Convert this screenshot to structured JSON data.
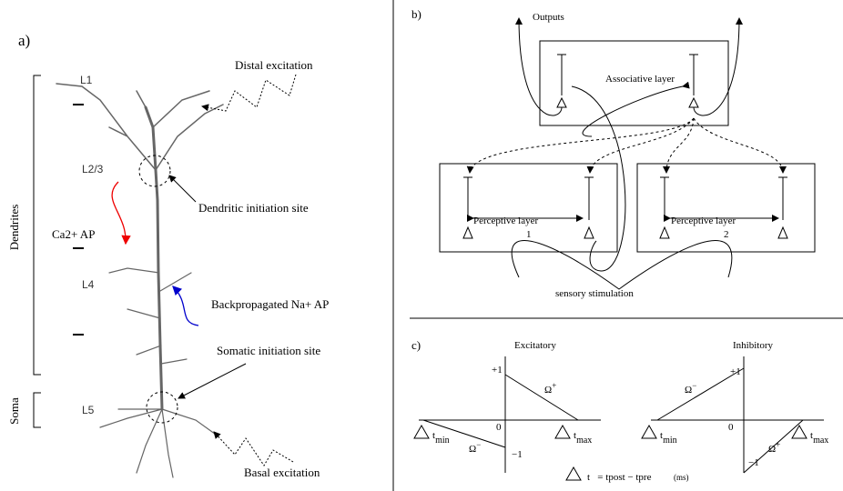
{
  "panel_a": {
    "label": "a)",
    "layers": [
      "L1",
      "L2/3",
      "L4",
      "L5"
    ],
    "dendrites": "Dendrites",
    "soma": "Soma",
    "distal": "Distal excitation",
    "dendritic_site": "Dendritic initiation site",
    "ca_ap": "Ca2+ AP",
    "na_ap": "Backpropagated Na+ AP",
    "somatic_site": "Somatic initiation site",
    "basal": "Basal excitation"
  },
  "panel_b": {
    "label": "b)",
    "outputs": "Outputs",
    "associative": "Associative layer",
    "perceptive_1": {
      "name": "Perceptive layer",
      "number": "1"
    },
    "perceptive_2": {
      "name": "Perceptive layer",
      "number": "2"
    },
    "sensory": "sensory stimulation"
  },
  "panel_c": {
    "label": "c)",
    "excitatory": {
      "title": "Excitatory",
      "plus_one": "+1",
      "minus_one": "−1",
      "zero": "0",
      "omega_plus": {
        "main": "Ω",
        "sup": "+"
      },
      "omega_minus": {
        "main": "Ω",
        "sup": "−"
      },
      "tmin": {
        "main": "t",
        "sub": "min"
      },
      "tmax": {
        "main": "t",
        "sub": "max"
      }
    },
    "inhibitory": {
      "title": "Inhibitory",
      "plus_one": "+1",
      "minus_one": "−1",
      "zero": "0",
      "omega_plus": {
        "main": "Ω",
        "sup": "+"
      },
      "omega_minus": {
        "main": "Ω",
        "sup": "−"
      },
      "tmin": {
        "main": "t",
        "sub": "min"
      },
      "tmax": {
        "main": "t",
        "sub": "max"
      }
    },
    "formula": {
      "main": "t   = tpost − tpre",
      "unit": "(ms)"
    }
  }
}
